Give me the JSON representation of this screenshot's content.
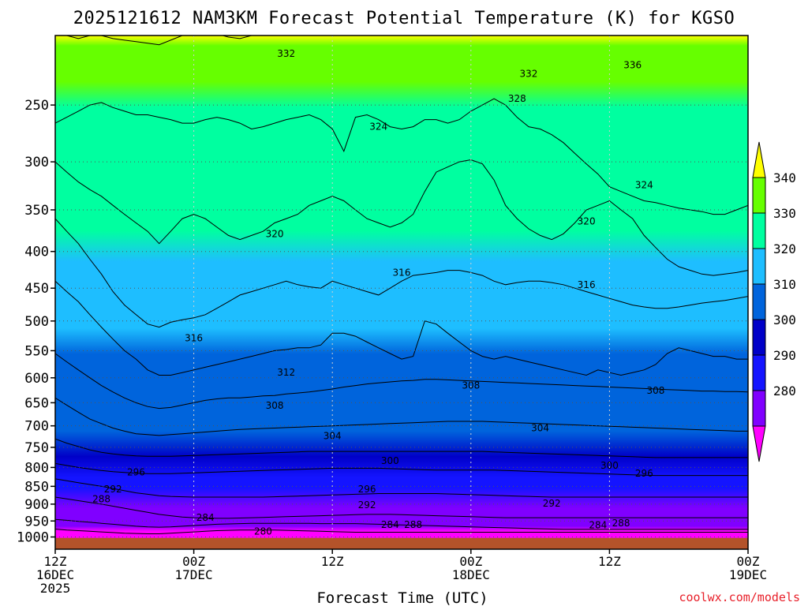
{
  "chart_data": {
    "type": "heatmap",
    "title": "2025121612 NAM3KM Forecast Potential Temperature (K) for KGSO",
    "xlabel": "Forecast Time (UTC)",
    "ylabel": "",
    "y_scale": "log (pressure, hPa, inverted)",
    "ylim": [
      1040,
      200
    ],
    "xlim": [
      0,
      60
    ],
    "x_unit": "forecast hours from 2025-12-16 12Z",
    "y_ticks": [
      "250",
      "300",
      "350",
      "400",
      "450",
      "500",
      "550",
      "600",
      "650",
      "700",
      "750",
      "800",
      "850",
      "900",
      "950",
      "1000"
    ],
    "x_ticks": [
      {
        "line1": "12Z",
        "line2": "16DEC",
        "line3": "2025"
      },
      {
        "line1": "00Z",
        "line2": "17DEC",
        "line3": ""
      },
      {
        "line1": "12Z",
        "line2": "",
        "line3": ""
      },
      {
        "line1": "00Z",
        "line2": "18DEC",
        "line3": ""
      },
      {
        "line1": "12Z",
        "line2": "",
        "line3": ""
      },
      {
        "line1": "00Z",
        "line2": "19DEC",
        "line3": ""
      }
    ],
    "grid": true,
    "colorbar": {
      "labels": [
        "280",
        "290",
        "300",
        "310",
        "320",
        "330",
        "340"
      ],
      "colors": [
        "#ff00ff",
        "#8000ff",
        "#1414ff",
        "#0000c8",
        "#0064dc",
        "#1ebeff",
        "#00ffa0",
        "#66ff00",
        "#ffff00"
      ]
    },
    "contour_interval": 2,
    "isentropes": [
      {
        "theta": 332,
        "p": [
          195,
          200,
          202,
          200,
          200,
          202,
          203,
          204,
          205,
          206,
          203,
          200,
          197,
          198,
          199,
          201,
          202,
          200,
          200,
          198,
          197,
          195,
          196,
          195,
          193,
          195,
          197,
          198,
          200,
          199,
          198,
          197,
          196,
          195,
          195,
          194,
          196,
          198,
          200,
          198,
          195,
          193,
          190,
          192,
          195,
          197,
          196,
          195,
          193,
          192,
          190,
          188,
          190,
          193,
          195,
          197,
          198,
          197,
          196,
          195,
          195
        ]
      },
      {
        "theta": 324,
        "p": [
          265,
          260,
          255,
          250,
          248,
          252,
          255,
          258,
          258,
          260,
          262,
          265,
          265,
          262,
          260,
          262,
          265,
          270,
          268,
          265,
          262,
          260,
          258,
          262,
          270,
          290,
          260,
          258,
          262,
          268,
          270,
          268,
          262,
          262,
          265,
          262,
          255,
          250,
          245,
          250,
          260,
          268,
          270,
          275,
          282,
          292,
          302,
          312,
          325,
          330,
          335,
          340,
          342,
          345,
          348,
          350,
          352,
          355,
          355,
          350,
          345
        ]
      },
      {
        "theta": 320,
        "p": [
          300,
          310,
          320,
          328,
          335,
          345,
          355,
          365,
          375,
          390,
          375,
          360,
          355,
          360,
          370,
          380,
          385,
          380,
          375,
          365,
          360,
          355,
          345,
          340,
          335,
          340,
          350,
          360,
          365,
          370,
          365,
          355,
          330,
          310,
          305,
          300,
          298,
          302,
          318,
          345,
          360,
          372,
          380,
          385,
          378,
          365,
          350,
          345,
          340,
          350,
          360,
          380,
          395,
          410,
          420,
          425,
          430,
          432,
          430,
          428,
          425
        ]
      },
      {
        "theta": 316,
        "p": [
          360,
          375,
          390,
          410,
          430,
          455,
          475,
          490,
          505,
          510,
          502,
          498,
          495,
          490,
          480,
          470,
          460,
          455,
          450,
          445,
          440,
          445,
          448,
          450,
          440,
          445,
          450,
          455,
          460,
          450,
          440,
          432,
          430,
          428,
          425,
          425,
          428,
          432,
          440,
          445,
          442,
          440,
          440,
          442,
          445,
          450,
          455,
          460,
          465,
          470,
          475,
          478,
          480,
          480,
          478,
          475,
          472,
          470,
          468,
          465,
          462
        ]
      },
      {
        "theta": 312,
        "p": [
          440,
          455,
          470,
          490,
          510,
          530,
          550,
          565,
          585,
          595,
          595,
          590,
          585,
          580,
          575,
          570,
          565,
          560,
          555,
          550,
          548,
          545,
          545,
          540,
          520,
          520,
          525,
          535,
          545,
          555,
          565,
          560,
          500,
          505,
          520,
          535,
          550,
          560,
          565,
          560,
          565,
          570,
          575,
          580,
          585,
          590,
          595,
          585,
          590,
          595,
          590,
          585,
          575,
          555,
          545,
          550,
          555,
          560,
          560,
          565,
          565
        ]
      },
      {
        "theta": 308,
        "p": [
          555,
          570,
          585,
          600,
          615,
          628,
          640,
          650,
          658,
          662,
          660,
          655,
          650,
          645,
          642,
          640,
          640,
          638,
          636,
          635,
          632,
          630,
          628,
          625,
          622,
          618,
          615,
          612,
          610,
          608,
          606,
          605,
          603,
          603,
          604,
          605,
          606,
          607,
          608,
          609,
          610,
          611,
          612,
          613,
          614,
          615,
          616,
          617,
          618,
          619,
          620,
          621,
          622,
          623,
          624,
          625,
          626,
          626,
          627,
          627,
          628
        ]
      },
      {
        "theta": 304,
        "p": [
          640,
          655,
          670,
          685,
          695,
          705,
          712,
          718,
          720,
          722,
          720,
          718,
          716,
          714,
          712,
          710,
          708,
          707,
          706,
          705,
          704,
          703,
          702,
          701,
          700,
          699,
          698,
          697,
          696,
          695,
          694,
          693,
          692,
          691,
          690,
          690,
          690,
          690,
          691,
          692,
          693,
          694,
          695,
          696,
          697,
          698,
          699,
          700,
          701,
          702,
          703,
          704,
          705,
          706,
          707,
          708,
          709,
          710,
          711,
          712,
          712
        ]
      },
      {
        "theta": 300,
        "p": [
          730,
          740,
          748,
          756,
          762,
          766,
          769,
          771,
          772,
          772,
          772,
          771,
          770,
          769,
          768,
          767,
          766,
          765,
          764,
          763,
          762,
          761,
          760,
          760,
          760,
          760,
          760,
          760,
          760,
          760,
          760,
          760,
          760,
          760,
          760,
          760,
          760,
          760,
          761,
          762,
          763,
          764,
          765,
          766,
          767,
          768,
          769,
          770,
          771,
          772,
          773,
          774,
          775,
          775,
          775,
          775,
          775,
          775,
          775,
          775,
          775
        ]
      },
      {
        "theta": 296,
        "p": [
          790,
          795,
          800,
          804,
          808,
          811,
          813,
          815,
          816,
          816,
          816,
          815,
          814,
          813,
          812,
          811,
          810,
          809,
          808,
          807,
          806,
          805,
          804,
          803,
          802,
          802,
          802,
          802,
          802,
          803,
          804,
          805,
          806,
          807,
          807,
          807,
          807,
          807,
          807,
          808,
          809,
          810,
          811,
          812,
          813,
          814,
          815,
          816,
          817,
          818,
          819,
          820,
          821,
          821,
          821,
          821,
          821,
          821,
          821,
          821,
          821
        ]
      },
      {
        "theta": 292,
        "p": [
          830,
          835,
          840,
          845,
          850,
          856,
          862,
          868,
          872,
          876,
          878,
          879,
          880,
          880,
          880,
          880,
          880,
          880,
          880,
          879,
          878,
          877,
          876,
          875,
          874,
          873,
          872,
          871,
          870,
          870,
          870,
          870,
          870,
          870,
          871,
          872,
          873,
          874,
          875,
          876,
          877,
          878,
          879,
          880,
          880,
          880,
          880,
          880,
          880,
          880,
          880,
          880,
          880,
          880,
          880,
          880,
          880,
          880,
          880,
          880,
          880
        ]
      },
      {
        "theta": 288,
        "p": [
          880,
          885,
          890,
          895,
          900,
          906,
          912,
          918,
          924,
          930,
          934,
          938,
          940,
          941,
          942,
          942,
          941,
          940,
          939,
          938,
          937,
          936,
          935,
          934,
          933,
          932,
          931,
          930,
          930,
          930,
          931,
          932,
          933,
          934,
          935,
          936,
          937,
          938,
          939,
          940,
          940,
          940,
          940,
          940,
          940,
          940,
          940,
          940,
          940,
          940,
          940,
          940,
          940,
          940,
          940,
          940,
          940,
          940,
          940,
          940,
          940
        ]
      },
      {
        "theta": 284,
        "p": [
          945,
          948,
          951,
          954,
          957,
          960,
          963,
          966,
          968,
          969,
          968,
          966,
          964,
          962,
          960,
          959,
          958,
          957,
          957,
          957,
          957,
          957,
          957,
          958,
          958,
          958,
          958,
          959,
          960,
          961,
          962,
          963,
          964,
          965,
          966,
          967,
          968,
          969,
          970,
          971,
          972,
          973,
          974,
          975,
          976,
          976,
          976,
          976,
          976,
          976,
          976,
          976,
          976,
          976,
          976,
          976,
          976,
          976,
          976,
          976,
          976
        ]
      },
      {
        "theta": 280,
        "p": [
          975,
          978,
          980,
          982,
          984,
          986,
          988,
          989,
          990,
          990,
          988,
          986,
          984,
          982,
          980,
          979,
          978,
          978,
          978,
          978,
          979,
          980,
          981,
          982,
          983,
          984,
          985,
          985,
          985,
          985,
          985,
          985,
          985,
          985,
          985,
          985,
          985,
          985,
          985,
          985,
          985,
          985,
          985,
          985,
          985,
          985,
          985,
          985,
          985,
          985,
          985,
          985,
          985,
          985,
          985,
          985,
          985,
          985,
          985,
          985,
          985
        ]
      }
    ],
    "contour_labels": [
      {
        "text": "332",
        "hr": 20,
        "p": 212
      },
      {
        "text": "332",
        "hr": 41,
        "p": 226
      },
      {
        "text": "336",
        "hr": 50,
        "p": 220
      },
      {
        "text": "328",
        "hr": 40,
        "p": 245
      },
      {
        "text": "324",
        "hr": 28,
        "p": 268
      },
      {
        "text": "324",
        "hr": 51,
        "p": 323
      },
      {
        "text": "320",
        "hr": 19,
        "p": 378
      },
      {
        "text": "320",
        "hr": 46,
        "p": 363
      },
      {
        "text": "316",
        "hr": 30,
        "p": 428
      },
      {
        "text": "316",
        "hr": 46,
        "p": 445
      },
      {
        "text": "316",
        "hr": 12,
        "p": 528
      },
      {
        "text": "312",
        "hr": 20,
        "p": 590
      },
      {
        "text": "308",
        "hr": 19,
        "p": 656
      },
      {
        "text": "308",
        "hr": 36,
        "p": 615
      },
      {
        "text": "308",
        "hr": 52,
        "p": 625
      },
      {
        "text": "304",
        "hr": 24,
        "p": 723
      },
      {
        "text": "304",
        "hr": 42,
        "p": 705
      },
      {
        "text": "300",
        "hr": 29,
        "p": 783
      },
      {
        "text": "300",
        "hr": 48,
        "p": 795
      },
      {
        "text": "296",
        "hr": 7,
        "p": 812
      },
      {
        "text": "296",
        "hr": 27,
        "p": 858
      },
      {
        "text": "296",
        "hr": 51,
        "p": 816
      },
      {
        "text": "292",
        "hr": 5,
        "p": 858
      },
      {
        "text": "292",
        "hr": 27,
        "p": 902
      },
      {
        "text": "292",
        "hr": 43,
        "p": 898
      },
      {
        "text": "288",
        "hr": 4,
        "p": 885
      },
      {
        "text": "288",
        "hr": 31,
        "p": 962
      },
      {
        "text": "288",
        "hr": 49,
        "p": 957
      },
      {
        "text": "284",
        "hr": 13,
        "p": 940
      },
      {
        "text": "284",
        "hr": 29,
        "p": 962
      },
      {
        "text": "284",
        "hr": 47,
        "p": 963
      },
      {
        "text": "280",
        "hr": 18,
        "p": 983
      }
    ],
    "ground_color": "#b4532a"
  },
  "credit": "coolwx.com/models"
}
